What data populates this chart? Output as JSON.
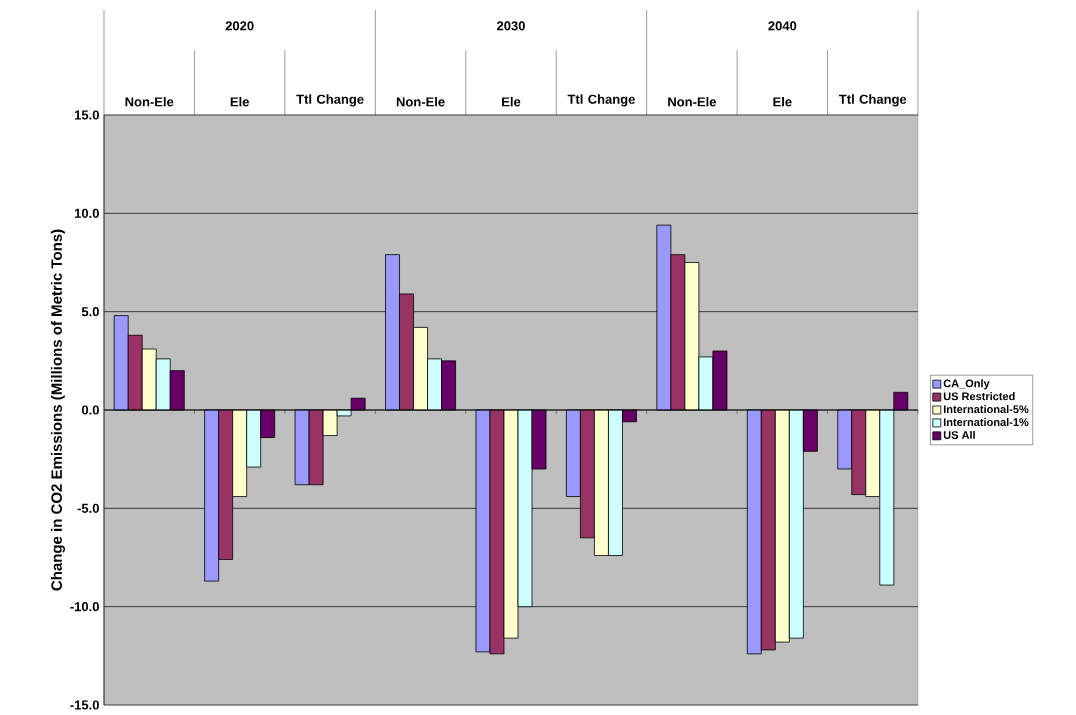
{
  "chart_data": {
    "type": "bar",
    "categories": [
      "Non-Ele",
      "Ele",
      "Ttl Change",
      "Non-Ele",
      "Ele",
      "Ttl Change",
      "Non-Ele",
      "Ele",
      "Ttl Change"
    ],
    "annotations": [
      "2020",
      "2030",
      "2040"
    ],
    "ylabel": "Change in CO2 Emissions (Millions of Metric Tons)",
    "series": [
      {
        "name": "CA_Only",
        "color": "#9999ff",
        "values": [
          4.8,
          -8.7,
          -3.8,
          7.9,
          -12.3,
          -4.4,
          9.4,
          -12.4,
          -3.0
        ]
      },
      {
        "name": "US Restricted",
        "color": "#993366",
        "values": [
          3.8,
          -7.6,
          -3.8,
          5.9,
          -12.4,
          -6.5,
          7.9,
          -12.2,
          -4.3
        ]
      },
      {
        "name": "International-5%",
        "color": "#ffffcc",
        "values": [
          3.1,
          -4.4,
          -1.3,
          4.2,
          -11.6,
          -7.4,
          7.5,
          -11.8,
          -4.4
        ]
      },
      {
        "name": "International-1%",
        "color": "#ccffff",
        "values": [
          2.6,
          -2.9,
          -0.3,
          2.6,
          -10.0,
          -7.4,
          2.7,
          -11.6,
          -8.9
        ]
      },
      {
        "name": "US All",
        "color": "#660066",
        "values": [
          2.0,
          -1.4,
          0.6,
          2.5,
          -3.0,
          -0.6,
          3.0,
          -2.1,
          0.9
        ]
      }
    ],
    "ylim": [
      -15,
      15
    ],
    "yticks": [
      {
        "value": -15,
        "label": "-15.0"
      },
      {
        "value": -10,
        "label": "-10.0"
      },
      {
        "value": -5,
        "label": "-5.0"
      },
      {
        "value": 0,
        "label": "0.0"
      },
      {
        "value": 5,
        "label": "5.0"
      },
      {
        "value": 10,
        "label": "10.0"
      },
      {
        "value": 15,
        "label": "15.0"
      }
    ],
    "grid": "y",
    "legend": "right"
  }
}
